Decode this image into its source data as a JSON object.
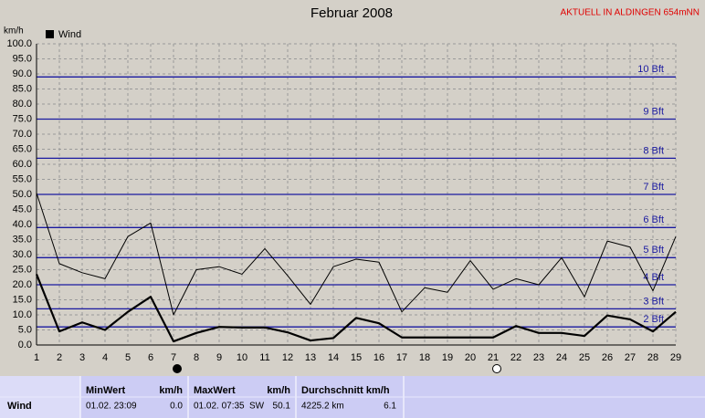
{
  "chart_data": {
    "type": "line",
    "title": "Februar 2008",
    "subtitle": "AKTUELL IN ALDINGEN 654mNN",
    "y_label": "km/h",
    "x": [
      1,
      2,
      3,
      4,
      5,
      6,
      7,
      8,
      9,
      10,
      11,
      12,
      13,
      14,
      15,
      16,
      17,
      18,
      19,
      20,
      21,
      22,
      23,
      24,
      25,
      26,
      27,
      28,
      29
    ],
    "xlim": [
      1,
      29
    ],
    "xticks": [
      1,
      2,
      3,
      4,
      5,
      6,
      7,
      8,
      9,
      10,
      11,
      12,
      13,
      14,
      15,
      16,
      17,
      18,
      19,
      20,
      21,
      22,
      23,
      24,
      25,
      26,
      27,
      28,
      29
    ],
    "ylim": [
      0,
      100
    ],
    "yticks": [
      {
        "value": 0,
        "label": "0.0"
      },
      {
        "value": 5,
        "label": "5.0"
      },
      {
        "value": 10,
        "label": "10.0"
      },
      {
        "value": 15,
        "label": "15.0"
      },
      {
        "value": 20,
        "label": "20.0"
      },
      {
        "value": 25,
        "label": "25.0"
      },
      {
        "value": 30,
        "label": "30.0"
      },
      {
        "value": 35,
        "label": "35.0"
      },
      {
        "value": 40,
        "label": "40.0"
      },
      {
        "value": 45,
        "label": "45.0"
      },
      {
        "value": 50,
        "label": "50.0"
      },
      {
        "value": 55,
        "label": "55.0"
      },
      {
        "value": 60,
        "label": "60.0"
      },
      {
        "value": 65,
        "label": "65.0"
      },
      {
        "value": 70,
        "label": "70.0"
      },
      {
        "value": 75,
        "label": "75.0"
      },
      {
        "value": 80,
        "label": "80.0"
      },
      {
        "value": 85,
        "label": "85.0"
      },
      {
        "value": 90,
        "label": "90.0"
      },
      {
        "value": 95,
        "label": "95.0"
      },
      {
        "value": 100,
        "label": "100.0"
      }
    ],
    "grid": true,
    "series": [
      {
        "name": "Wind",
        "color": "#000000",
        "width": 2.2,
        "values": [
          23.5,
          4.5,
          7.5,
          5,
          11,
          16,
          1.2,
          4,
          6,
          5.8,
          5.8,
          4.2,
          1.5,
          2.3,
          9,
          7.2,
          2.5,
          2.5,
          2.5,
          2.5,
          2.5,
          6.3,
          4,
          4,
          3,
          9.8,
          8.5,
          4.5,
          11
        ]
      },
      {
        "color": "#000000",
        "width": 1,
        "values": [
          50.5,
          27,
          24,
          22,
          36,
          40.5,
          10,
          25,
          26,
          23.5,
          32,
          23,
          13.5,
          26,
          28.5,
          27.5,
          11,
          19,
          17.5,
          28,
          18.5,
          22,
          20,
          29,
          16,
          34.5,
          32.5,
          18,
          36
        ]
      }
    ],
    "bft_color": "#1a1aa0",
    "bft_lines": [
      {
        "value": 6,
        "label": "2 Bft"
      },
      {
        "value": 12,
        "label": "3 Bft"
      },
      {
        "value": 20,
        "label": "4 Bft"
      },
      {
        "value": 29,
        "label": "5 Bft"
      },
      {
        "value": 39,
        "label": "6 Bft"
      },
      {
        "value": 50,
        "label": "7 Bft"
      },
      {
        "value": 62,
        "label": "8 Bft"
      },
      {
        "value": 75,
        "label": "9 Bft"
      },
      {
        "value": 89,
        "label": "10 Bft"
      }
    ],
    "new_moon": 7,
    "full_moon": 21
  },
  "summary": {
    "label": "Wind",
    "min_header": "MinWert",
    "min_unit": "km/h",
    "min_time": "01.02.  23:09",
    "min_value": "0.0",
    "max_header": "MaxWert",
    "max_unit": "km/h",
    "max_time": "01.02.  07:35",
    "max_dir": "SW",
    "max_value": "50.1",
    "avg_header": "Durchschnitt km/h",
    "avg_distance": "4225.2 km",
    "avg_value": "6.1"
  }
}
